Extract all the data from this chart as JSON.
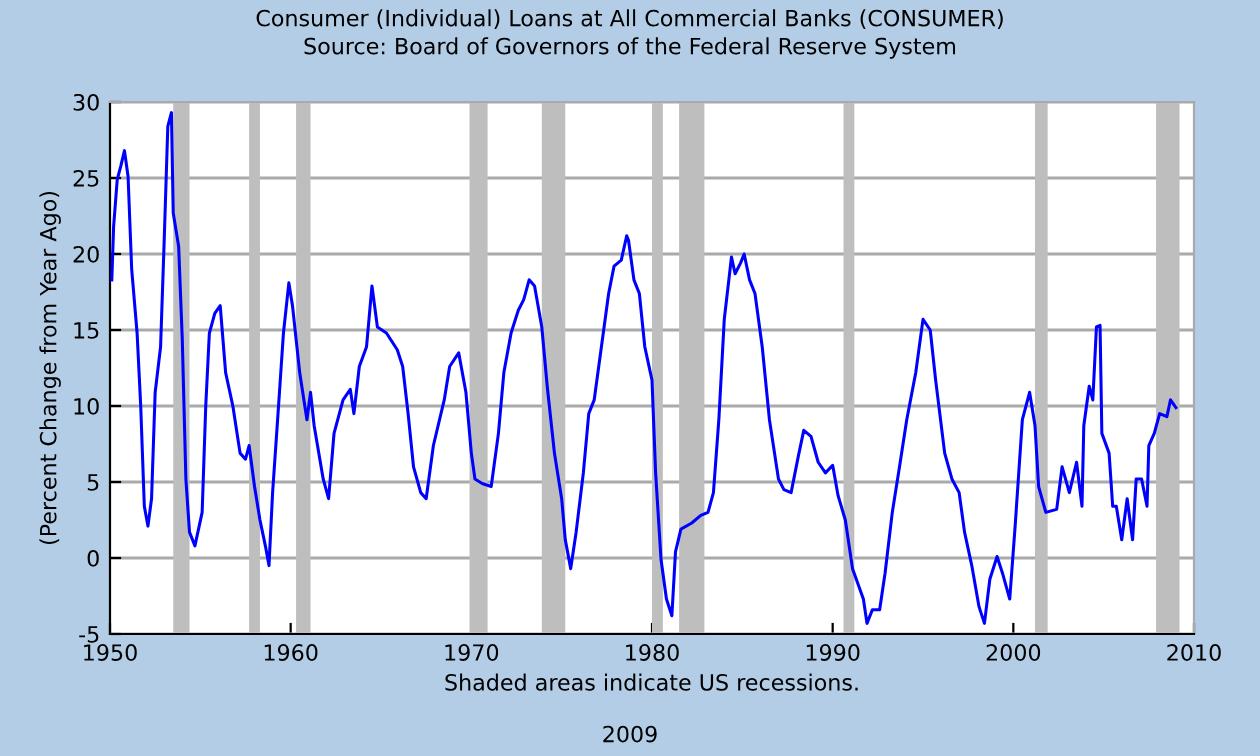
{
  "chart_data": {
    "type": "line",
    "title": "Consumer (Individual) Loans at All Commercial Banks (CONSUMER)",
    "subtitle": "Source: Board of Governors of the Federal Reserve System",
    "ylabel": "(Percent Change from Year Ago)",
    "xlabel": "Shaded areas indicate US recessions.",
    "annotations": [
      "2009"
    ],
    "xlim": [
      1950,
      2010
    ],
    "xticks": [
      1950,
      1960,
      1970,
      1980,
      1990,
      2000,
      2010
    ],
    "ylim": [
      -5,
      30
    ],
    "yticks": [
      -5,
      0,
      5,
      10,
      15,
      20,
      25,
      30
    ],
    "grid": "y",
    "series": [
      {
        "color": "#0000ff",
        "x": [
          1950.1,
          1950.2,
          1950.4,
          1950.6,
          1950.8,
          1951.0,
          1951.2,
          1951.5,
          1951.7,
          1951.9,
          1952.1,
          1952.3,
          1952.5,
          1952.8,
          1953.0,
          1953.2,
          1953.4,
          1953.5,
          1953.8,
          1954.0,
          1954.2,
          1954.4,
          1954.7,
          1955.1,
          1955.3,
          1955.5,
          1955.8,
          1956.1,
          1956.4,
          1956.8,
          1957.2,
          1957.5,
          1957.7,
          1958.0,
          1958.3,
          1958.6,
          1958.8,
          1959.0,
          1959.3,
          1959.6,
          1959.9,
          1960.1,
          1960.5,
          1960.9,
          1961.1,
          1961.3,
          1961.8,
          1962.1,
          1962.4,
          1962.9,
          1963.3,
          1963.5,
          1963.8,
          1964.2,
          1964.5,
          1964.8,
          1965.3,
          1965.9,
          1966.2,
          1966.5,
          1966.8,
          1967.2,
          1967.5,
          1967.9,
          1968.5,
          1968.8,
          1969.3,
          1969.7,
          1970.0,
          1970.2,
          1970.6,
          1971.1,
          1971.5,
          1971.8,
          1972.2,
          1972.6,
          1972.9,
          1973.2,
          1973.5,
          1973.9,
          1974.2,
          1974.6,
          1975.0,
          1975.2,
          1975.5,
          1975.8,
          1976.2,
          1976.5,
          1976.8,
          1977.2,
          1977.6,
          1977.9,
          1978.3,
          1978.6,
          1978.7,
          1979.0,
          1979.3,
          1979.6,
          1980.0,
          1980.2,
          1980.5,
          1980.8,
          1981.1,
          1981.3,
          1981.6,
          1982.2,
          1982.7,
          1983.1,
          1983.4,
          1983.7,
          1984.0,
          1984.4,
          1984.6,
          1984.9,
          1985.1,
          1985.4,
          1985.7,
          1986.1,
          1986.5,
          1987.0,
          1987.3,
          1987.7,
          1988.1,
          1988.4,
          1988.8,
          1989.2,
          1989.6,
          1990.0,
          1990.3,
          1990.7,
          1991.1,
          1991.7,
          1991.9,
          1992.2,
          1992.6,
          1992.9,
          1993.3,
          1993.7,
          1994.1,
          1994.6,
          1995.0,
          1995.4,
          1995.7,
          1996.2,
          1996.6,
          1997.0,
          1997.3,
          1997.7,
          1998.1,
          1998.4,
          1998.7,
          1999.1,
          1999.4,
          1999.8,
          2000.1,
          2000.5,
          2000.9,
          2001.2,
          2001.4,
          2001.8,
          2002.4,
          2002.7,
          2003.1,
          2003.5,
          2003.8,
          2003.9,
          2004.2,
          2004.4,
          2004.6,
          2004.8,
          2004.9,
          2005.3,
          2005.5,
          2005.7,
          2006.0,
          2006.3,
          2006.6,
          2006.8,
          2007.1,
          2007.4,
          2007.5,
          2007.8,
          2008.1,
          2008.5,
          2008.7,
          2009.0
        ],
        "values": [
          18.3,
          21.8,
          24.9,
          25.8,
          26.8,
          25.1,
          19.0,
          14.8,
          10.0,
          3.4,
          2.1,
          3.9,
          10.9,
          13.9,
          20.9,
          28.4,
          29.3,
          22.7,
          20.5,
          14.4,
          5.2,
          1.7,
          0.8,
          3.0,
          10.0,
          14.8,
          16.1,
          16.6,
          12.2,
          10.0,
          6.9,
          6.5,
          7.4,
          4.7,
          2.5,
          0.8,
          -0.5,
          4.3,
          9.5,
          14.8,
          18.1,
          16.6,
          12.2,
          9.1,
          10.9,
          8.7,
          5.2,
          3.9,
          8.2,
          10.4,
          11.1,
          9.5,
          12.6,
          13.9,
          17.9,
          15.2,
          14.8,
          13.7,
          12.6,
          9.5,
          6.0,
          4.3,
          3.9,
          7.4,
          10.4,
          12.6,
          13.5,
          10.9,
          6.9,
          5.2,
          4.9,
          4.7,
          8.2,
          12.2,
          14.8,
          16.3,
          17.0,
          18.3,
          17.9,
          15.2,
          11.3,
          6.9,
          3.9,
          1.2,
          -0.7,
          1.7,
          5.6,
          9.5,
          10.4,
          13.9,
          17.4,
          19.2,
          19.6,
          21.2,
          20.9,
          18.3,
          17.4,
          13.9,
          11.7,
          5.6,
          -0.1,
          -2.7,
          -3.8,
          0.4,
          1.9,
          2.3,
          2.8,
          3.0,
          4.3,
          9.1,
          15.7,
          19.8,
          18.7,
          19.4,
          20.0,
          18.3,
          17.4,
          13.9,
          9.1,
          5.2,
          4.5,
          4.3,
          6.7,
          8.4,
          8.0,
          6.3,
          5.6,
          6.1,
          4.1,
          2.5,
          -0.7,
          -2.7,
          -4.3,
          -3.4,
          -3.4,
          -1.0,
          3.0,
          6.0,
          9.1,
          12.2,
          15.7,
          15.0,
          11.7,
          6.9,
          5.2,
          4.3,
          1.7,
          -0.5,
          -3.2,
          -4.3,
          -1.4,
          0.1,
          -1.0,
          -2.7,
          2.1,
          9.1,
          10.9,
          8.7,
          4.7,
          3.0,
          3.2,
          6.0,
          4.3,
          6.3,
          3.4,
          8.7,
          11.3,
          10.4,
          15.2,
          15.3,
          8.2,
          6.9,
          3.4,
          3.4,
          1.2,
          3.9,
          1.2,
          5.2,
          5.2,
          3.4,
          7.4,
          8.2,
          9.5,
          9.3,
          10.4,
          9.9
        ]
      }
    ],
    "bands": [
      {
        "axis": "x",
        "from": 1953.5,
        "to": 1954.4,
        "color": "#bebebe"
      },
      {
        "axis": "x",
        "from": 1957.7,
        "to": 1958.3,
        "color": "#bebebe"
      },
      {
        "axis": "x",
        "from": 1960.3,
        "to": 1961.1,
        "color": "#bebebe"
      },
      {
        "axis": "x",
        "from": 1969.9,
        "to": 1970.9,
        "color": "#bebebe"
      },
      {
        "axis": "x",
        "from": 1973.9,
        "to": 1975.2,
        "color": "#bebebe"
      },
      {
        "axis": "x",
        "from": 1980.0,
        "to": 1980.6,
        "color": "#bebebe"
      },
      {
        "axis": "x",
        "from": 1981.5,
        "to": 1982.9,
        "color": "#bebebe"
      },
      {
        "axis": "x",
        "from": 1990.6,
        "to": 1991.2,
        "color": "#bebebe"
      },
      {
        "axis": "x",
        "from": 2001.2,
        "to": 2001.9,
        "color": "#bebebe"
      },
      {
        "axis": "x",
        "from": 2007.9,
        "to": 2009.2,
        "color": "#bebebe"
      }
    ]
  }
}
